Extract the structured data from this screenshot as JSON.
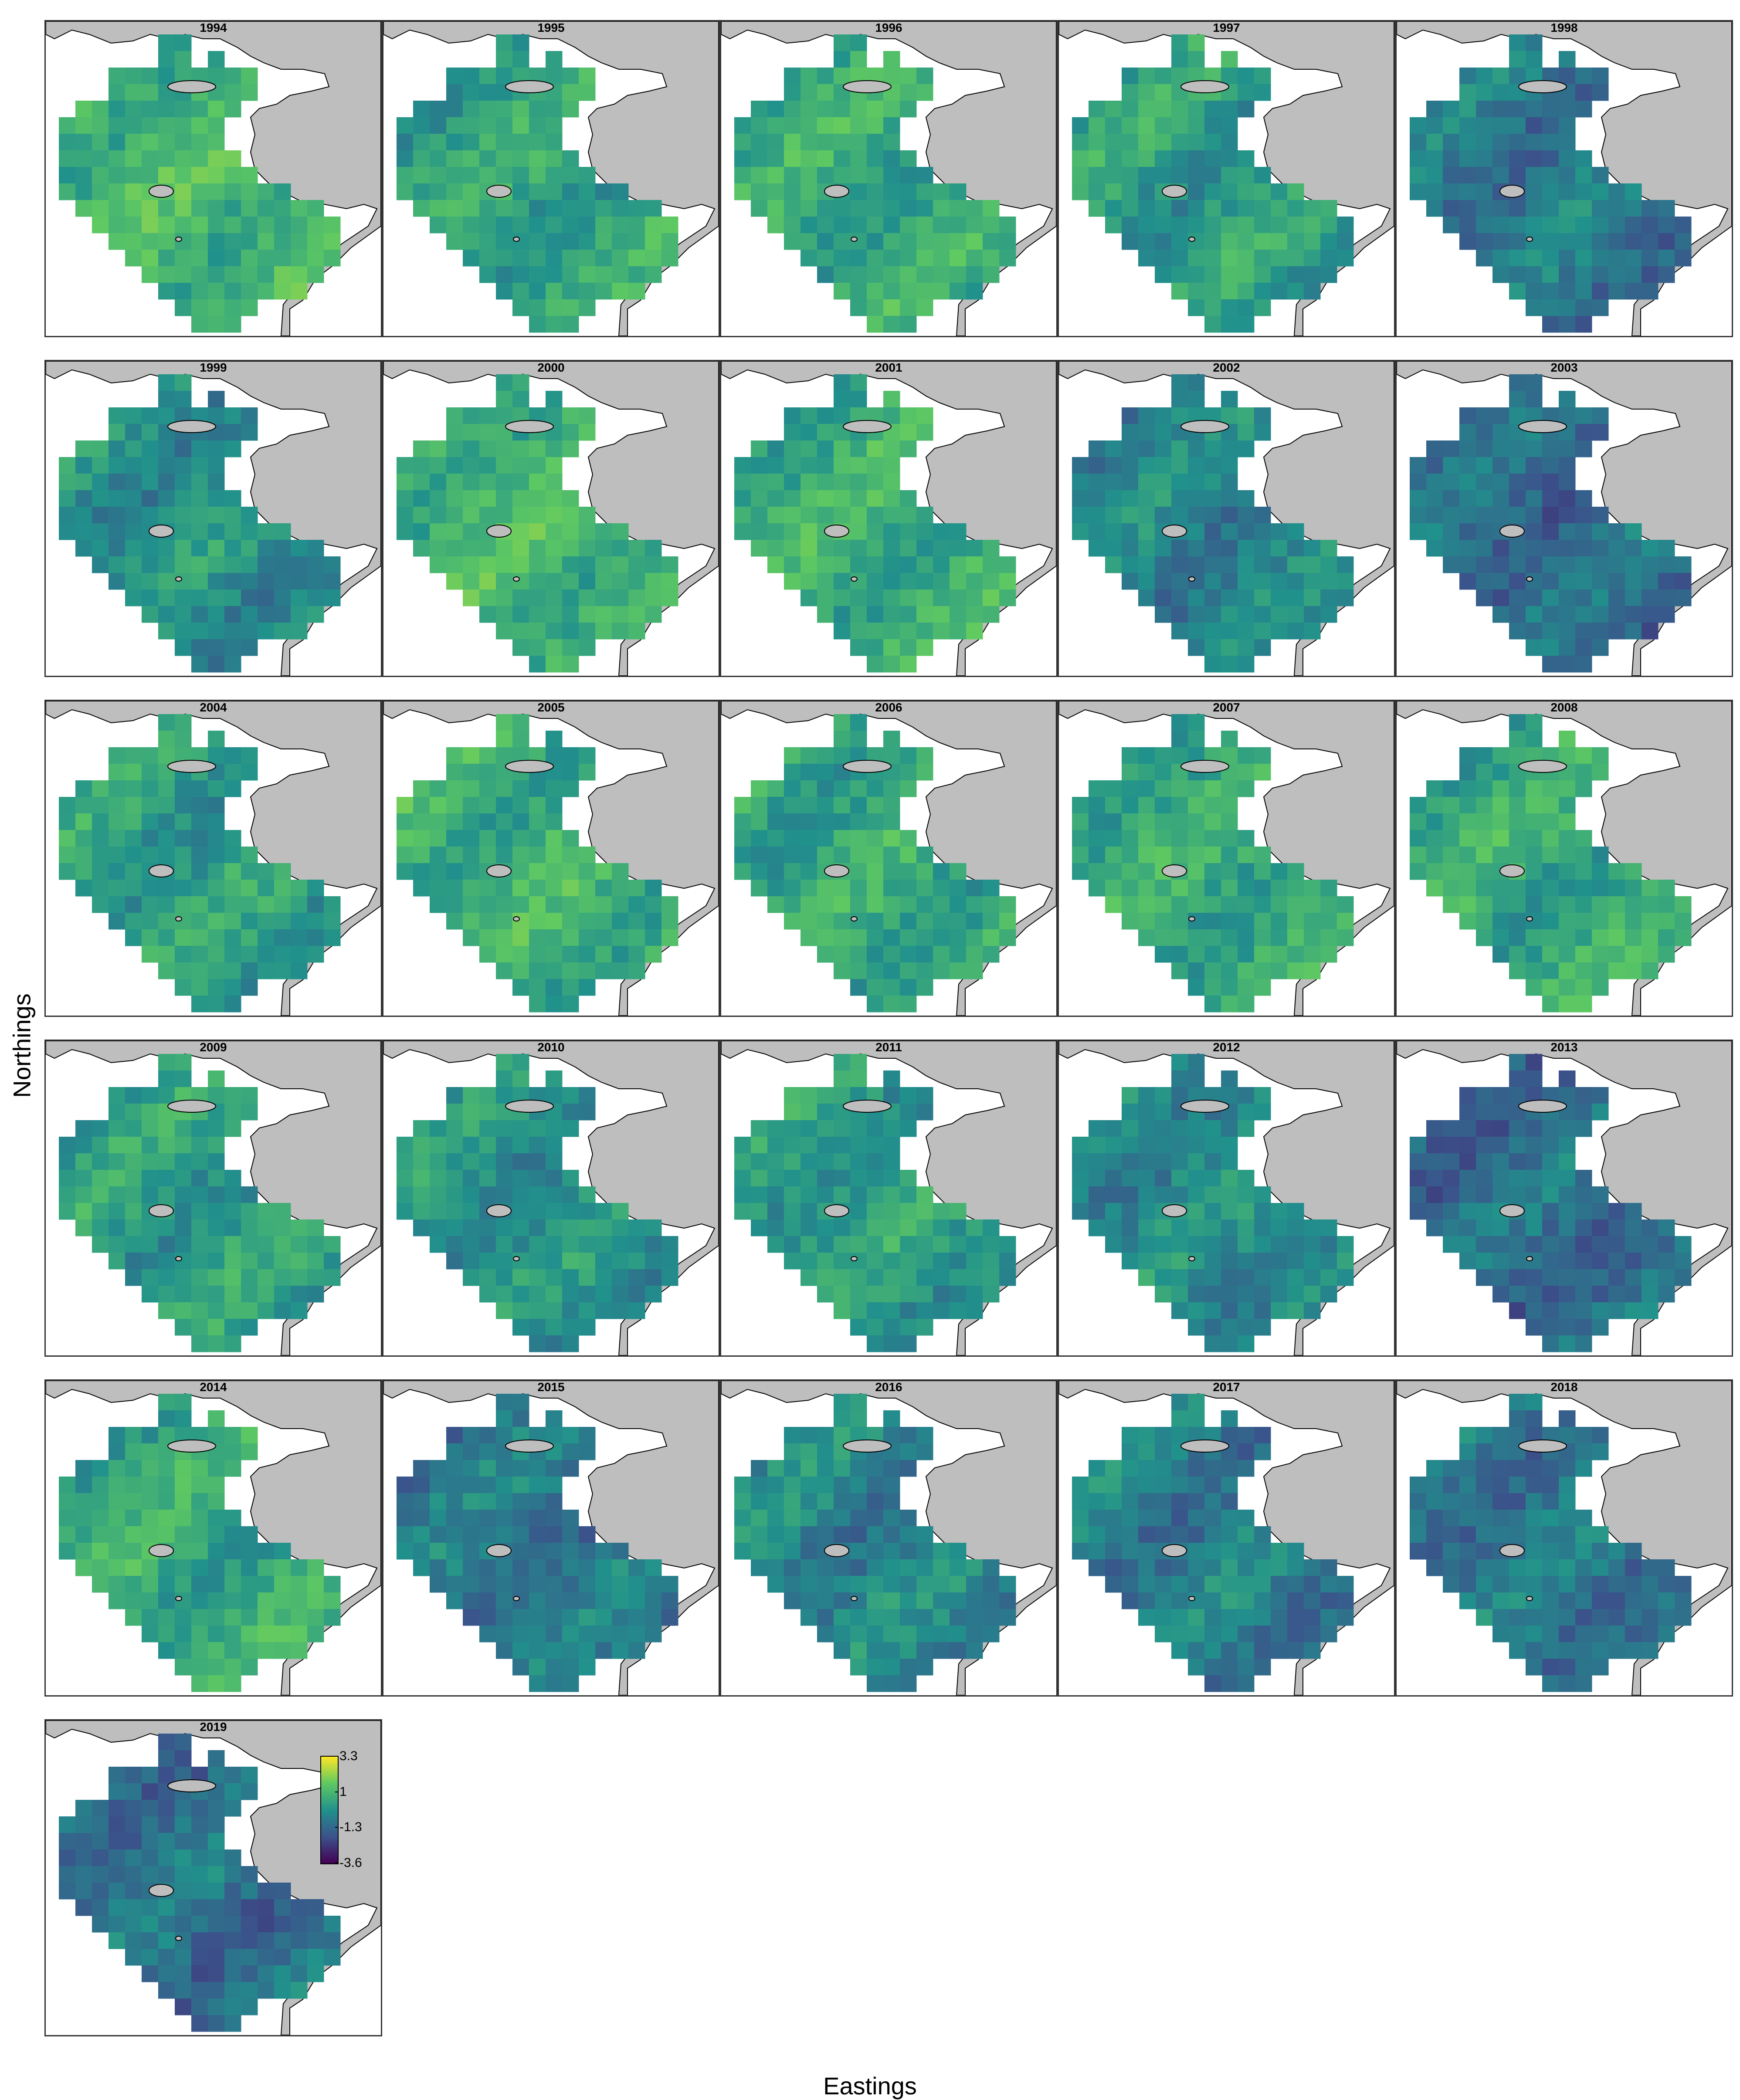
{
  "axes": {
    "xlabel": "Eastings",
    "ylabel": "Northings"
  },
  "legend": {
    "ticks": [
      "3.3",
      "1",
      "-1.3",
      "-3.6"
    ],
    "tick_values": [
      3.3,
      1,
      -1.3,
      -3.6
    ],
    "range": [
      -3.6,
      3.3
    ],
    "colormap": [
      "#440154",
      "#3b528b",
      "#21918c",
      "#5ec962",
      "#fde725"
    ]
  },
  "colors": {
    "land": "#bebebe",
    "coastline": "#000000",
    "panel_border": "#333333"
  },
  "panels": [
    {
      "year": "1994",
      "level": 0.66
    },
    {
      "year": "1995",
      "level": 0.58
    },
    {
      "year": "1996",
      "level": 0.6
    },
    {
      "year": "1997",
      "level": 0.55
    },
    {
      "year": "1998",
      "level": 0.4
    },
    {
      "year": "1999",
      "level": 0.5
    },
    {
      "year": "2000",
      "level": 0.65
    },
    {
      "year": "2001",
      "level": 0.62
    },
    {
      "year": "2002",
      "level": 0.45
    },
    {
      "year": "2003",
      "level": 0.36
    },
    {
      "year": "2004",
      "level": 0.55
    },
    {
      "year": "2005",
      "level": 0.63
    },
    {
      "year": "2006",
      "level": 0.6
    },
    {
      "year": "2007",
      "level": 0.6
    },
    {
      "year": "2008",
      "level": 0.6
    },
    {
      "year": "2009",
      "level": 0.55
    },
    {
      "year": "2010",
      "level": 0.5
    },
    {
      "year": "2011",
      "level": 0.55
    },
    {
      "year": "2012",
      "level": 0.48
    },
    {
      "year": "2013",
      "level": 0.36
    },
    {
      "year": "2014",
      "level": 0.6
    },
    {
      "year": "2015",
      "level": 0.4
    },
    {
      "year": "2016",
      "level": 0.45
    },
    {
      "year": "2017",
      "level": 0.42
    },
    {
      "year": "2018",
      "level": 0.4
    },
    {
      "year": "2019",
      "level": 0.38
    }
  ]
}
